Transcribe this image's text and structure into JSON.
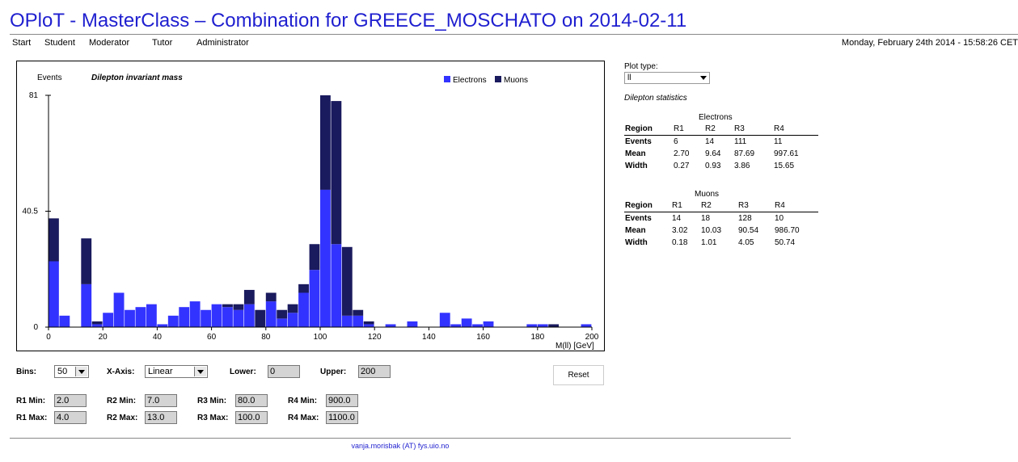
{
  "header": {
    "title": "OPloT - MasterClass – Combination for GREECE_MOSCHATO on 2014-02-11",
    "datetime": "Monday, February 24th 2014 - 15:58:26 CET",
    "nav": [
      "Start",
      "Student",
      "Moderator",
      "Tutor",
      "Administrator"
    ]
  },
  "chart_data": {
    "type": "bar",
    "stacked": true,
    "title": "Dilepton invariant mass",
    "ylabel": "Events",
    "xlabel": "M(ll) [GeV]",
    "xlim": [
      0,
      200
    ],
    "ylim": [
      0,
      81
    ],
    "yticks": [
      "0",
      "40.5",
      "81"
    ],
    "xticks": [
      "0",
      "20",
      "40",
      "60",
      "80",
      "100",
      "120",
      "140",
      "160",
      "180",
      "200"
    ],
    "bin_width": 4,
    "legend_position": "top-right",
    "colors": {
      "electrons": "#3333ff",
      "muons": "#1a1a5e"
    },
    "series": [
      {
        "name": "Electrons",
        "values": [
          23,
          4,
          0,
          15,
          1,
          5,
          12,
          6,
          7,
          8,
          1,
          4,
          7,
          9,
          6,
          8,
          7,
          6,
          8,
          0,
          9,
          3,
          5,
          12,
          20,
          48,
          29,
          4,
          4,
          1,
          0,
          1,
          0,
          2,
          0,
          0,
          5,
          1,
          3,
          1,
          2,
          0,
          0,
          0,
          1,
          1,
          0,
          0,
          0,
          1
        ]
      },
      {
        "name": "Muons",
        "values": [
          15,
          0,
          0,
          16,
          1,
          0,
          0,
          0,
          0,
          0,
          0,
          0,
          0,
          0,
          0,
          0,
          1,
          2,
          5,
          6,
          3,
          3,
          3,
          3,
          9,
          33,
          50,
          24,
          2,
          1,
          0,
          0,
          0,
          0,
          0,
          0,
          0,
          0,
          0,
          0,
          0,
          0,
          0,
          0,
          0,
          0,
          1,
          0,
          0,
          0
        ]
      }
    ]
  },
  "plot_type": {
    "label": "Plot type:",
    "value": "ll"
  },
  "stats": {
    "title": "Dilepton statistics",
    "electrons": {
      "caption": "Electrons",
      "header": [
        "Region",
        "R1",
        "R2",
        "R3",
        "R4"
      ],
      "rows": [
        [
          "Events",
          "6",
          "14",
          "111",
          "11"
        ],
        [
          "Mean",
          "2.70",
          "9.64",
          "87.69",
          "997.61"
        ],
        [
          "Width",
          "0.27",
          "0.93",
          "3.86",
          "15.65"
        ]
      ]
    },
    "muons": {
      "caption": "Muons",
      "header": [
        "Region",
        "R1",
        "R2",
        "R3",
        "R4"
      ],
      "rows": [
        [
          "Events",
          "14",
          "18",
          "128",
          "10"
        ],
        [
          "Mean",
          "3.02",
          "10.03",
          "90.54",
          "986.70"
        ],
        [
          "Width",
          "0.18",
          "1.01",
          "4.05",
          "50.74"
        ]
      ]
    }
  },
  "controls": {
    "bins_label": "Bins:",
    "bins_value": "50",
    "xaxis_label": "X-Axis:",
    "xaxis_value": "Linear",
    "lower_label": "Lower:",
    "lower_value": "0",
    "upper_label": "Upper:",
    "upper_value": "200",
    "reset_label": "Reset",
    "r1_min_label": "R1 Min:",
    "r1_min": "2.0",
    "r1_max_label": "R1 Max:",
    "r1_max": "4.0",
    "r2_min_label": "R2 Min:",
    "r2_min": "7.0",
    "r2_max_label": "R2 Max:",
    "r2_max": "13.0",
    "r3_min_label": "R3 Min:",
    "r3_min": "80.0",
    "r3_max_label": "R3 Max:",
    "r3_max": "100.0",
    "r4_min_label": "R4 Min:",
    "r4_min": "900.0",
    "r4_max_label": "R4 Max:",
    "r4_max": "1100.0"
  },
  "footer": {
    "email": "vanja.morisbak (AT) fys.uio.no"
  }
}
